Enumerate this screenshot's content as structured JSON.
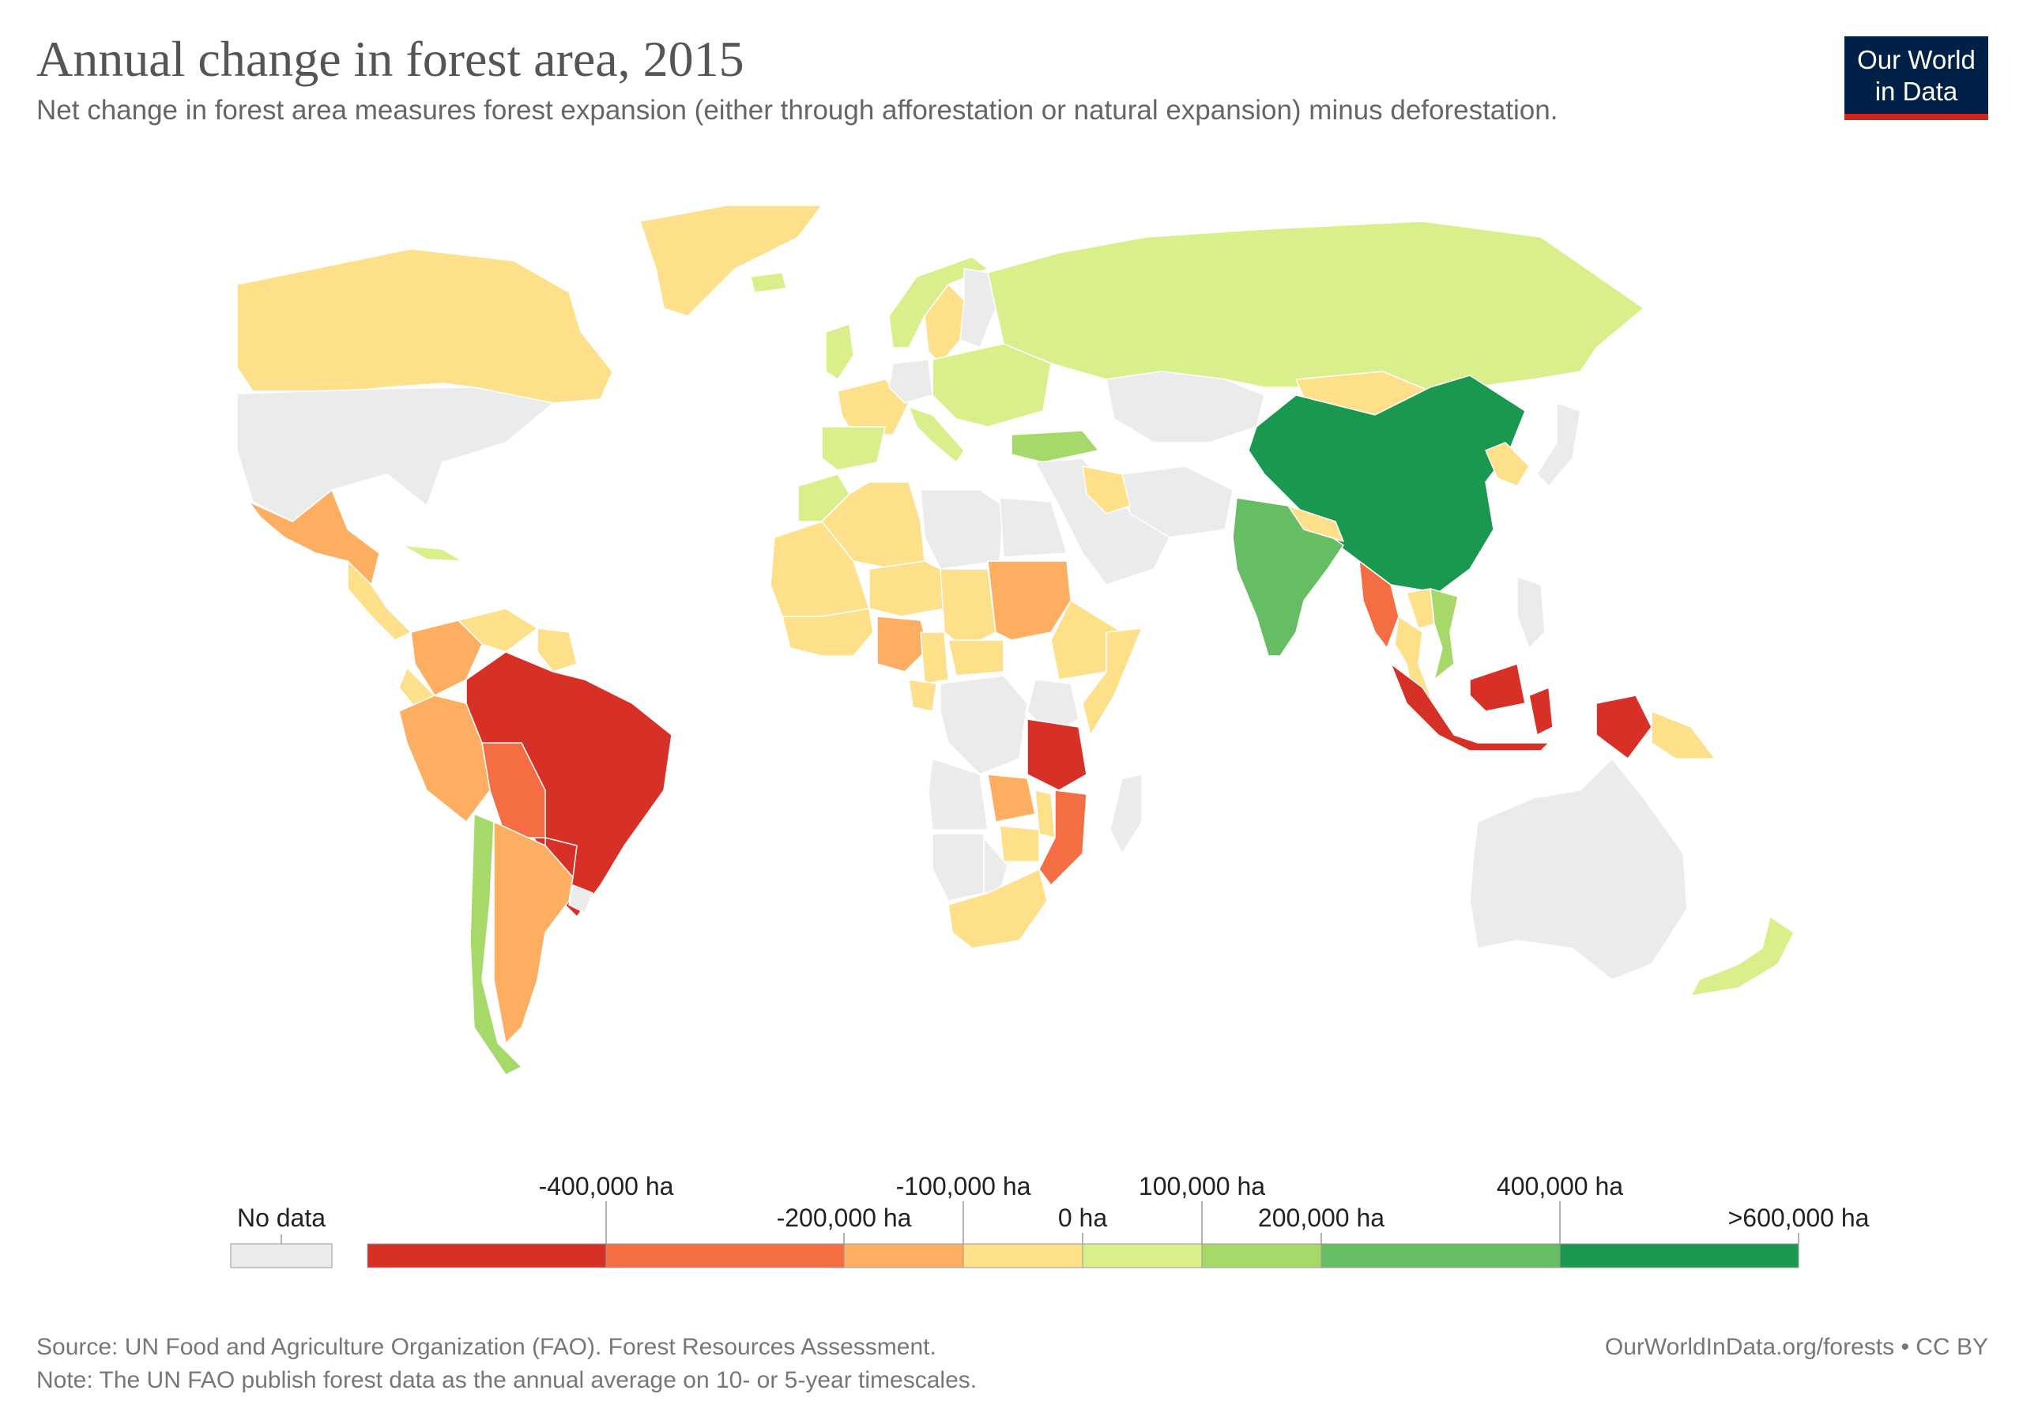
{
  "title": "Annual change in forest area, 2015",
  "subtitle": "Net change in forest area measures forest expansion (either through afforestation or natural expansion) minus deforestation.",
  "logo": {
    "line1": "Our World",
    "line2": "in Data"
  },
  "colors": {
    "no_data": "#ebebeb",
    "bins": [
      "#d73027",
      "#f46d43",
      "#fdae61",
      "#fee08b",
      "#d9ef8b",
      "#a6d96a",
      "#66bd63",
      "#1a9850"
    ]
  },
  "legend": {
    "no_data_label": "No data",
    "tick_labels": [
      "-400,000 ha",
      "-200,000 ha",
      "-100,000 ha",
      "0 ha",
      "100,000 ha",
      "200,000 ha",
      "400,000 ha",
      ">600,000 ha"
    ]
  },
  "chart_data": {
    "type": "choropleth",
    "year": 2015,
    "unit": "ha",
    "bin_edges": [
      -400000,
      -200000,
      -100000,
      0,
      100000,
      200000,
      400000,
      600000
    ],
    "regions": [
      {
        "name": "Canada",
        "bin": 3
      },
      {
        "name": "Greenland",
        "bin": 3
      },
      {
        "name": "United States",
        "bin": -1
      },
      {
        "name": "Mexico",
        "bin": 2
      },
      {
        "name": "Central America",
        "bin": 3
      },
      {
        "name": "Cuba",
        "bin": 4
      },
      {
        "name": "Colombia",
        "bin": 2
      },
      {
        "name": "Venezuela",
        "bin": 3
      },
      {
        "name": "Guianas",
        "bin": 3
      },
      {
        "name": "Ecuador",
        "bin": 3
      },
      {
        "name": "Peru",
        "bin": 2
      },
      {
        "name": "Brazil",
        "bin": 0
      },
      {
        "name": "Bolivia",
        "bin": 1
      },
      {
        "name": "Paraguay",
        "bin": 0
      },
      {
        "name": "Chile",
        "bin": 5
      },
      {
        "name": "Argentina",
        "bin": 2
      },
      {
        "name": "Uruguay",
        "bin": -1
      },
      {
        "name": "Iceland",
        "bin": 4
      },
      {
        "name": "Norway",
        "bin": 4
      },
      {
        "name": "Sweden",
        "bin": 3
      },
      {
        "name": "Finland",
        "bin": -1
      },
      {
        "name": "United Kingdom",
        "bin": 4
      },
      {
        "name": "France",
        "bin": 3
      },
      {
        "name": "Spain",
        "bin": 4
      },
      {
        "name": "Germany",
        "bin": -1
      },
      {
        "name": "Italy",
        "bin": 4
      },
      {
        "name": "Eastern Europe",
        "bin": 4
      },
      {
        "name": "Russia",
        "bin": 4
      },
      {
        "name": "Turkey",
        "bin": 5
      },
      {
        "name": "Kazakhstan",
        "bin": -1
      },
      {
        "name": "Mongolia",
        "bin": 3
      },
      {
        "name": "China",
        "bin": 7
      },
      {
        "name": "Korea",
        "bin": 3
      },
      {
        "name": "Japan",
        "bin": -1
      },
      {
        "name": "Middle East",
        "bin": -1
      },
      {
        "name": "Iran",
        "bin": -1
      },
      {
        "name": "Iraq",
        "bin": 3
      },
      {
        "name": "India",
        "bin": 6
      },
      {
        "name": "Nepal",
        "bin": 3
      },
      {
        "name": "Myanmar",
        "bin": 1
      },
      {
        "name": "Thailand",
        "bin": 3
      },
      {
        "name": "Vietnam",
        "bin": 5
      },
      {
        "name": "Laos",
        "bin": 3
      },
      {
        "name": "Philippines",
        "bin": -1
      },
      {
        "name": "Indonesia",
        "bin": 0
      },
      {
        "name": "Papua New Guinea",
        "bin": 3
      },
      {
        "name": "Australia",
        "bin": -1
      },
      {
        "name": "New Zealand",
        "bin": 4
      },
      {
        "name": "Morocco",
        "bin": 4
      },
      {
        "name": "Algeria",
        "bin": 3
      },
      {
        "name": "Libya",
        "bin": -1
      },
      {
        "name": "Egypt",
        "bin": -1
      },
      {
        "name": "West Sahel",
        "bin": 3
      },
      {
        "name": "Niger",
        "bin": 3
      },
      {
        "name": "Chad",
        "bin": 3
      },
      {
        "name": "Sudan",
        "bin": 2
      },
      {
        "name": "Ethiopia",
        "bin": 3
      },
      {
        "name": "Somalia",
        "bin": 3
      },
      {
        "name": "West Africa",
        "bin": 3
      },
      {
        "name": "Nigeria",
        "bin": 2
      },
      {
        "name": "Cameroon",
        "bin": 3
      },
      {
        "name": "Central African Republic",
        "bin": 3
      },
      {
        "name": "Gabon",
        "bin": 3
      },
      {
        "name": "DR Congo",
        "bin": -1
      },
      {
        "name": "Kenya",
        "bin": -1
      },
      {
        "name": "Tanzania",
        "bin": 0
      },
      {
        "name": "Angola",
        "bin": -1
      },
      {
        "name": "Zambia",
        "bin": 2
      },
      {
        "name": "Malawi",
        "bin": 3
      },
      {
        "name": "Mozambique",
        "bin": 1
      },
      {
        "name": "Zimbabwe",
        "bin": 3
      },
      {
        "name": "Namibia",
        "bin": -1
      },
      {
        "name": "Botswana",
        "bin": -1
      },
      {
        "name": "South Africa",
        "bin": 3
      },
      {
        "name": "Madagascar",
        "bin": -1
      }
    ]
  },
  "footer": {
    "source": "Source: UN Food and Agriculture Organization (FAO). Forest Resources Assessment.",
    "note": "Note: The UN FAO publish forest data as the annual average on 10- or 5-year timescales.",
    "credit": "OurWorldInData.org/forests • CC BY"
  }
}
